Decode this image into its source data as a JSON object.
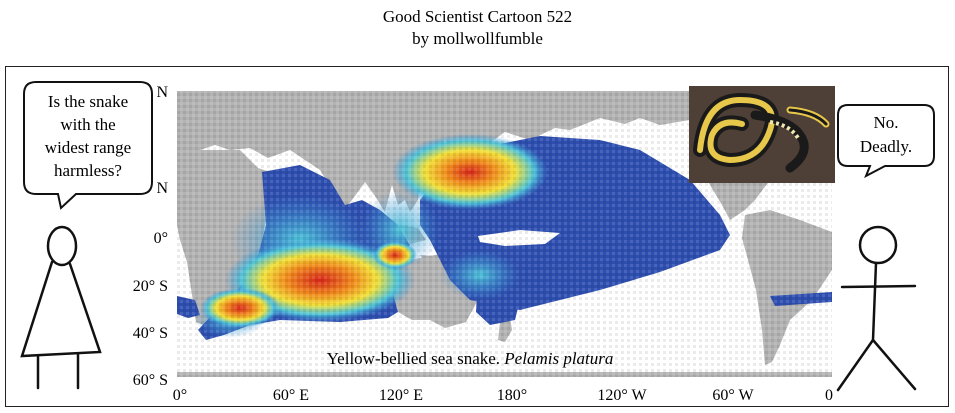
{
  "title_line1": "Good Scientist Cartoon 522",
  "title_line2": "by mollwollfumble",
  "left_speech": [
    "Is the snake",
    "with the",
    "widest range",
    "harmless?"
  ],
  "right_speech": [
    "No.",
    "Deadly."
  ],
  "map": {
    "lat_labels": [
      "N",
      "N",
      "0°",
      "20° S",
      "40° S",
      "60° S"
    ],
    "lon_labels": [
      "0°",
      "60° E",
      "120° E",
      "180°",
      "120° W",
      "60° W",
      "0"
    ],
    "caption_plain": "Yellow-bellied sea snake. ",
    "caption_italic": "Pelamis platura"
  },
  "colors": {
    "land": "#b3b3b3",
    "ocean_low": "#2e4fb0",
    "ocean_mid": "#3a8fd6",
    "cyan": "#4fc4d9",
    "yellow": "#f2e13a",
    "orange": "#f08a1c",
    "red": "#d6261b"
  },
  "icons": [
    "woman-stick-figure",
    "man-stick-figure",
    "sea-snake-photo"
  ]
}
